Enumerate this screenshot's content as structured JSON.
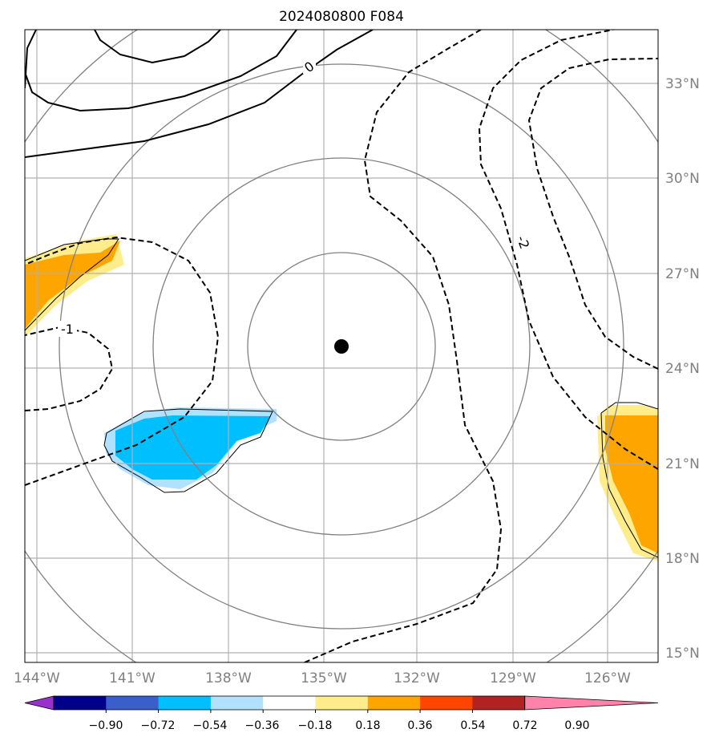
{
  "title": "2024080800 F084",
  "axes": {
    "lon_labels": [
      "144°W",
      "141°W",
      "138°W",
      "135°W",
      "132°W",
      "129°W",
      "126°W"
    ],
    "lat_labels": [
      "15°N",
      "18°N",
      "21°N",
      "24°N",
      "27°N",
      "30°N",
      "33°N"
    ],
    "label_color": "#808080",
    "grid": true
  },
  "contour_labels": {
    "zero": "0",
    "neg_one": "-1",
    "neg_two": "-2"
  },
  "range_rings": {
    "count": 4,
    "color": "#808080"
  },
  "storm_center": {
    "lon": -134.5,
    "lat": 24.7,
    "marker": "filled-circle"
  },
  "colorbar": {
    "tick_labels": [
      "−0.90",
      "−0.72",
      "−0.54",
      "−0.36",
      "−0.18",
      "0.18",
      "0.36",
      "0.54",
      "0.72",
      "0.90"
    ],
    "colors": [
      "#9932cc",
      "#00008b",
      "#3a5fcd",
      "#00bfff",
      "#b0e2ff",
      "#ffffff",
      "#ffec8b",
      "#ffa500",
      "#ff4500",
      "#b22222",
      "#ff82ab"
    ],
    "extend": "both"
  },
  "shading": {
    "positive_light": "#ffec8b",
    "positive": "#ffa500",
    "negative_light": "#b0e2ff",
    "negative": "#00bfff"
  }
}
